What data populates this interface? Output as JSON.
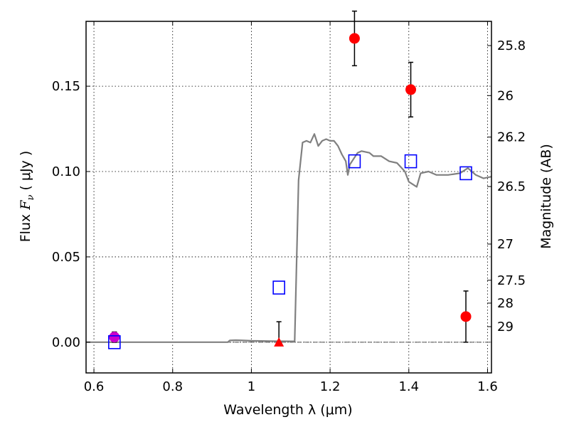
{
  "chart_data": {
    "type": "scatter",
    "xlabel": "Wavelength  λ (μm)",
    "ylabel_main": "Flux  ",
    "ylabel_symbol": "F",
    "ylabel_sub": "ν",
    "ylabel_unit": "  ( μJy )",
    "y2label": "Magnitude (AB)",
    "xlim": [
      0.58,
      1.61
    ],
    "ylim": [
      -0.018,
      0.188
    ],
    "grid": true,
    "x_ticks": [
      {
        "value": 0.6,
        "label": "0.6"
      },
      {
        "value": 0.8,
        "label": "0.8"
      },
      {
        "value": 1.0,
        "label": "1"
      },
      {
        "value": 1.2,
        "label": "1.2"
      },
      {
        "value": 1.4,
        "label": "1.4"
      },
      {
        "value": 1.6,
        "label": "1.6"
      }
    ],
    "y_ticks": [
      {
        "value": 0.0,
        "label": "0.00"
      },
      {
        "value": 0.05,
        "label": "0.05"
      },
      {
        "value": 0.1,
        "label": "0.10"
      },
      {
        "value": 0.15,
        "label": "0.15"
      }
    ],
    "y2_ticks": [
      {
        "flux": 0.1738,
        "label": "25.8"
      },
      {
        "flux": 0.1445,
        "label": "26"
      },
      {
        "flux": 0.1202,
        "label": "26.2"
      },
      {
        "flux": 0.0912,
        "label": "26.5"
      },
      {
        "flux": 0.0575,
        "label": "27"
      },
      {
        "flux": 0.0363,
        "label": "27.5"
      },
      {
        "flux": 0.0229,
        "label": "28"
      },
      {
        "flux": 0.0091,
        "label": "29"
      }
    ],
    "series": [
      {
        "marker": "line",
        "color": "#808080",
        "points": [
          [
            0.58,
            0.0
          ],
          [
            0.7,
            0.0
          ],
          [
            0.8,
            0.0
          ],
          [
            0.9,
            0.0
          ],
          [
            0.94,
            0.0
          ],
          [
            0.945,
            0.001
          ],
          [
            0.96,
            0.0012
          ],
          [
            0.98,
            0.001
          ],
          [
            1.0,
            0.0008
          ],
          [
            1.05,
            0.0006
          ],
          [
            1.1,
            0.0005
          ],
          [
            1.11,
            0.0005
          ],
          [
            1.12,
            0.095
          ],
          [
            1.13,
            0.117
          ],
          [
            1.14,
            0.118
          ],
          [
            1.15,
            0.117
          ],
          [
            1.16,
            0.122
          ],
          [
            1.17,
            0.115
          ],
          [
            1.18,
            0.118
          ],
          [
            1.19,
            0.119
          ],
          [
            1.2,
            0.118
          ],
          [
            1.21,
            0.118
          ],
          [
            1.22,
            0.115
          ],
          [
            1.23,
            0.11
          ],
          [
            1.24,
            0.106
          ],
          [
            1.245,
            0.098
          ],
          [
            1.25,
            0.104
          ],
          [
            1.27,
            0.111
          ],
          [
            1.28,
            0.112
          ],
          [
            1.3,
            0.111
          ],
          [
            1.31,
            0.109
          ],
          [
            1.33,
            0.109
          ],
          [
            1.35,
            0.106
          ],
          [
            1.37,
            0.105
          ],
          [
            1.39,
            0.1
          ],
          [
            1.4,
            0.094
          ],
          [
            1.42,
            0.091
          ],
          [
            1.43,
            0.099
          ],
          [
            1.45,
            0.1
          ],
          [
            1.47,
            0.098
          ],
          [
            1.5,
            0.098
          ],
          [
            1.53,
            0.099
          ],
          [
            1.55,
            0.102
          ],
          [
            1.57,
            0.098
          ],
          [
            1.59,
            0.096
          ],
          [
            1.61,
            0.097
          ]
        ]
      },
      {
        "marker": "circle",
        "color": "#ff0000",
        "points": [
          {
            "x": 1.262,
            "y": 0.178,
            "err": 0.016
          },
          {
            "x": 1.405,
            "y": 0.148,
            "err": 0.016
          },
          {
            "x": 1.545,
            "y": 0.015,
            "err": 0.015
          }
        ]
      },
      {
        "marker": "triangle",
        "color": "#ff0000",
        "points": [
          {
            "x": 1.07,
            "y": 0.0,
            "err_up": 0.012
          }
        ]
      },
      {
        "marker": "circle",
        "color": "#cc00cc",
        "points": [
          {
            "x": 0.652,
            "y": 0.003,
            "err": 0.003
          }
        ]
      },
      {
        "marker": "square",
        "color": "#0000ff",
        "points": [
          {
            "x": 0.652,
            "y": 0.0
          },
          {
            "x": 1.07,
            "y": 0.032
          },
          {
            "x": 1.262,
            "y": 0.106
          },
          {
            "x": 1.405,
            "y": 0.106
          },
          {
            "x": 1.545,
            "y": 0.099
          }
        ]
      }
    ]
  }
}
